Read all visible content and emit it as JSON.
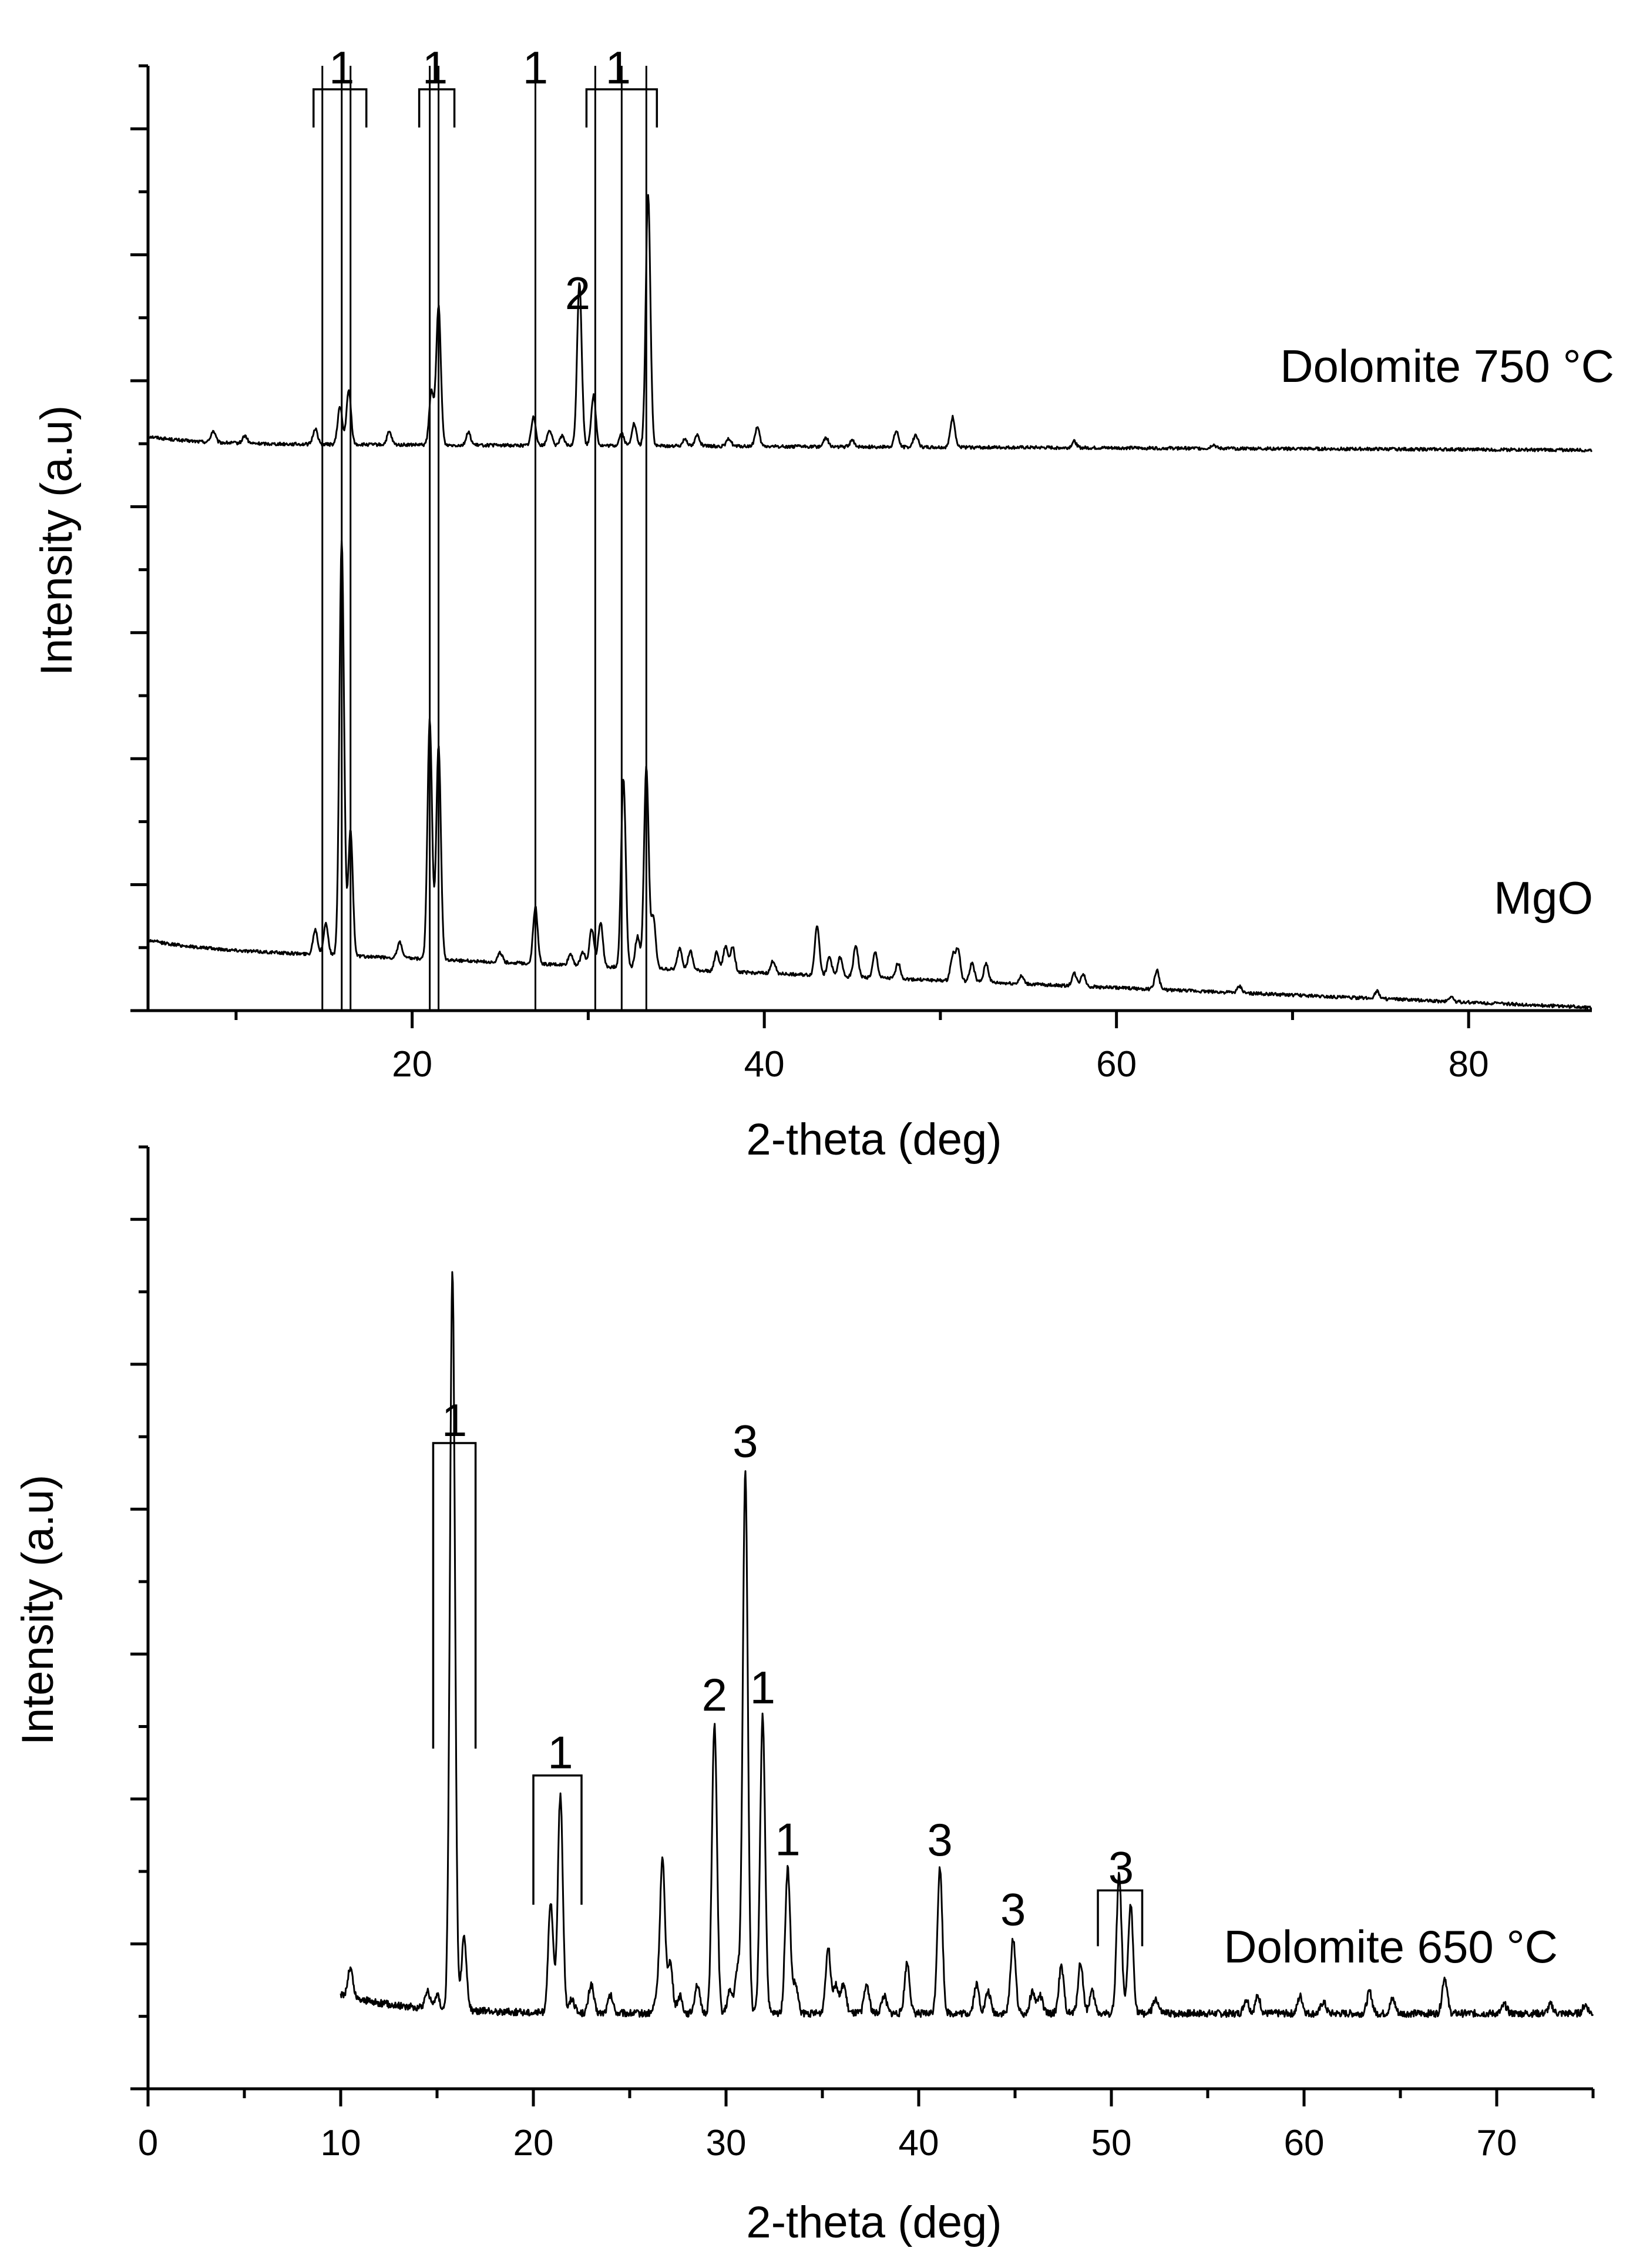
{
  "chart_data": [
    {
      "type": "line",
      "xlabel": "2-theta (deg)",
      "ylabel": "Intensity (a.u)",
      "xlim": [
        5,
        87
      ],
      "ylim": [
        0,
        15
      ],
      "xticks": [
        20,
        40,
        60,
        80
      ],
      "tick_labels": [
        "20",
        "40",
        "60",
        "80"
      ],
      "y_tick_labels_shown": false,
      "series": [
        {
          "name": "Dolomite 750 °C",
          "label": "Dolomite 750 °C",
          "baseline": 9.0,
          "end_level": 8.9,
          "peaks": [
            [
              8.7,
              0.18
            ],
            [
              10.5,
              0.12
            ],
            [
              14.5,
              0.25
            ],
            [
              15.9,
              0.6
            ],
            [
              16.4,
              0.85
            ],
            [
              18.7,
              0.2
            ],
            [
              21.1,
              0.85
            ],
            [
              21.5,
              2.2
            ],
            [
              23.2,
              0.2
            ],
            [
              26.9,
              0.45
            ],
            [
              27.8,
              0.25
            ],
            [
              28.5,
              0.15
            ],
            [
              29.5,
              2.6
            ],
            [
              30.3,
              0.8
            ],
            [
              31.9,
              0.2
            ],
            [
              32.6,
              0.35
            ],
            [
              33.4,
              4.0
            ],
            [
              35.5,
              0.12
            ],
            [
              36.2,
              0.18
            ],
            [
              38.0,
              0.12
            ],
            [
              39.6,
              0.3
            ],
            [
              43.5,
              0.15
            ],
            [
              45.0,
              0.1
            ],
            [
              47.5,
              0.25
            ],
            [
              48.6,
              0.2
            ],
            [
              50.7,
              0.48
            ],
            [
              57.6,
              0.1
            ],
            [
              65.5,
              0.06
            ]
          ]
        },
        {
          "name": "MgO",
          "label": "MgO",
          "baseline": 1.0,
          "end_level": 0.05,
          "peaks": [
            [
              14.5,
              0.4
            ],
            [
              15.1,
              0.5
            ],
            [
              16.0,
              6.6
            ],
            [
              16.5,
              2.0
            ],
            [
              19.3,
              0.25
            ],
            [
              21.0,
              3.8
            ],
            [
              21.5,
              3.4
            ],
            [
              25.0,
              0.15
            ],
            [
              27.0,
              0.9
            ],
            [
              29.0,
              0.18
            ],
            [
              29.7,
              0.22
            ],
            [
              30.2,
              0.6
            ],
            [
              30.7,
              0.7
            ],
            [
              32.0,
              3.0
            ],
            [
              32.8,
              0.5
            ],
            [
              33.3,
              3.2
            ],
            [
              33.7,
              0.8
            ],
            [
              35.2,
              0.35
            ],
            [
              35.8,
              0.3
            ],
            [
              37.3,
              0.3
            ],
            [
              37.8,
              0.4
            ],
            [
              38.2,
              0.4
            ],
            [
              40.5,
              0.2
            ],
            [
              43.0,
              0.8
            ],
            [
              43.7,
              0.3
            ],
            [
              44.3,
              0.3
            ],
            [
              45.2,
              0.5
            ],
            [
              46.3,
              0.4
            ],
            [
              47.6,
              0.25
            ],
            [
              50.7,
              0.4
            ],
            [
              51.0,
              0.5
            ],
            [
              51.8,
              0.3
            ],
            [
              52.6,
              0.3
            ],
            [
              54.6,
              0.12
            ],
            [
              57.6,
              0.2
            ],
            [
              58.1,
              0.2
            ],
            [
              62.3,
              0.3
            ],
            [
              67.0,
              0.1
            ],
            [
              74.8,
              0.12
            ],
            [
              79.0,
              0.08
            ]
          ]
        }
      ],
      "reference_lines": [
        14.9,
        16.0,
        16.5,
        21.0,
        21.5,
        27.0,
        30.4,
        31.9,
        33.3
      ],
      "annotations": [
        {
          "text": "1",
          "x": 16.0,
          "bracket": [
            14.4,
            17.4
          ]
        },
        {
          "text": "1",
          "x": 21.3,
          "bracket": [
            20.4,
            22.4
          ]
        },
        {
          "text": "1",
          "x": 27.0
        },
        {
          "text": "1",
          "x": 31.7,
          "bracket": [
            29.9,
            33.9
          ]
        },
        {
          "text": "2",
          "x": 29.4
        }
      ]
    },
    {
      "type": "line",
      "xlabel": "2-theta (deg)",
      "ylabel": "Intensity (a.u)",
      "xlim": [
        0,
        75
      ],
      "ylim": [
        -0.5,
        6
      ],
      "xticks": [
        0,
        10,
        20,
        30,
        40,
        50,
        60,
        70
      ],
      "tick_labels": [
        "0",
        "10",
        "20",
        "30",
        "40",
        "50",
        "60",
        "70"
      ],
      "y_tick_labels_shown": false,
      "series": [
        {
          "name": "Dolomite 650 °C",
          "label": "Dolomite 650 °C",
          "x_start": 10,
          "start_level": 0.15,
          "baseline": 0.02,
          "end_level": 0.02,
          "peaks": [
            [
              10.5,
              0.2
            ],
            [
              14.5,
              0.12
            ],
            [
              15.0,
              0.1
            ],
            [
              15.8,
              5.1
            ],
            [
              16.4,
              0.5
            ],
            [
              20.9,
              0.75
            ],
            [
              21.4,
              1.5
            ],
            [
              22.0,
              0.1
            ],
            [
              23.0,
              0.2
            ],
            [
              24.0,
              0.12
            ],
            [
              26.4,
              0.1
            ],
            [
              26.7,
              1.05
            ],
            [
              27.1,
              0.35
            ],
            [
              27.6,
              0.12
            ],
            [
              28.5,
              0.2
            ],
            [
              29.4,
              2.0
            ],
            [
              30.2,
              0.15
            ],
            [
              30.6,
              0.3
            ],
            [
              31.0,
              3.75
            ],
            [
              31.9,
              2.05
            ],
            [
              33.2,
              1.0
            ],
            [
              33.6,
              0.2
            ],
            [
              35.3,
              0.45
            ],
            [
              35.7,
              0.2
            ],
            [
              36.1,
              0.2
            ],
            [
              37.3,
              0.2
            ],
            [
              38.2,
              0.12
            ],
            [
              39.4,
              0.35
            ],
            [
              41.1,
              1.0
            ],
            [
              43.0,
              0.2
            ],
            [
              43.6,
              0.15
            ],
            [
              44.9,
              0.52
            ],
            [
              45.9,
              0.15
            ],
            [
              46.3,
              0.12
            ],
            [
              47.4,
              0.32
            ],
            [
              48.4,
              0.35
            ],
            [
              49.0,
              0.15
            ],
            [
              50.4,
              0.95
            ],
            [
              51.0,
              0.75
            ],
            [
              52.3,
              0.1
            ],
            [
              57.0,
              0.1
            ],
            [
              57.6,
              0.12
            ],
            [
              59.8,
              0.12
            ],
            [
              61.0,
              0.08
            ],
            [
              63.4,
              0.15
            ],
            [
              64.6,
              0.1
            ],
            [
              67.3,
              0.25
            ],
            [
              70.4,
              0.06
            ],
            [
              72.8,
              0.06
            ],
            [
              74.6,
              0.06
            ]
          ]
        }
      ],
      "annotations": [
        {
          "text": "1",
          "x": 15.9,
          "bracket": [
            14.8,
            17.0
          ]
        },
        {
          "text": "1",
          "x": 21.4,
          "bracket": [
            20.0,
            22.5
          ]
        },
        {
          "text": "2",
          "x": 29.4
        },
        {
          "text": "3",
          "x": 31.0
        },
        {
          "text": "1",
          "x": 31.9
        },
        {
          "text": "1",
          "x": 33.2
        },
        {
          "text": "3",
          "x": 41.1
        },
        {
          "text": "3",
          "x": 44.9
        },
        {
          "text": "3",
          "x": 50.5,
          "bracket": [
            49.3,
            51.6
          ]
        }
      ]
    }
  ]
}
